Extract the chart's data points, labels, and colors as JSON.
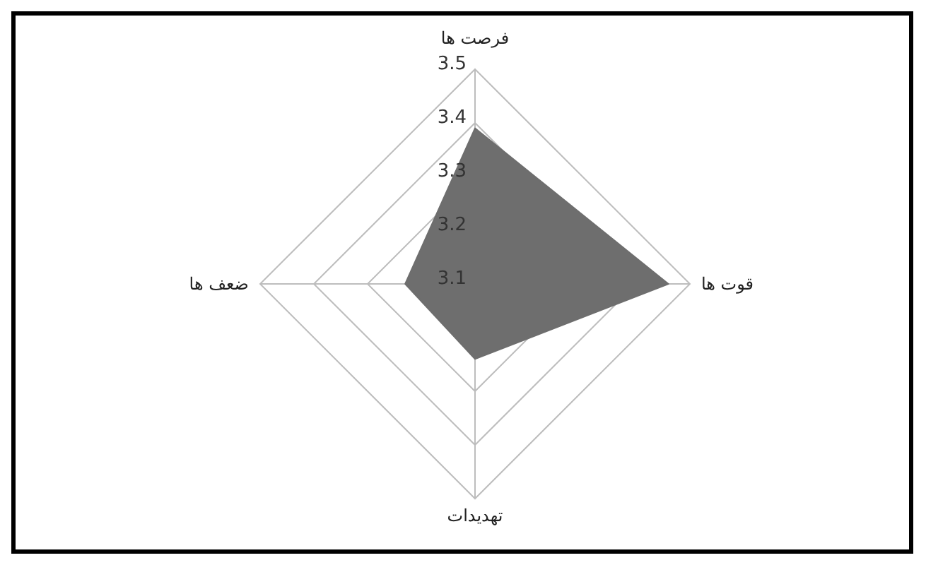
{
  "chart_data": {
    "type": "radar",
    "categories": [
      "فرصت ها",
      "قوت ها",
      "تهدیدات",
      "ضعف ها"
    ],
    "series": [
      {
        "color": "#6e6e6e",
        "values": [
          3.39,
          3.46,
          3.24,
          3.23
        ]
      }
    ],
    "ylim": [
      3.1,
      3.5
    ],
    "yticks": [
      3.1,
      3.2,
      3.3,
      3.4,
      3.5
    ],
    "grid": true,
    "legend": false
  }
}
